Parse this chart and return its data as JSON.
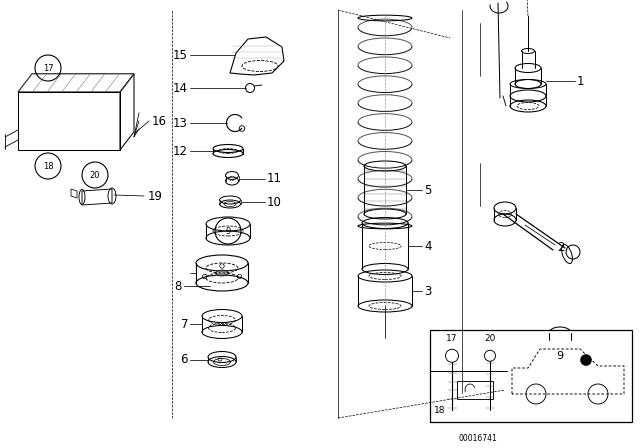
{
  "bg_color": "#ffffff",
  "line_color": "#000000",
  "fig_width": 6.4,
  "fig_height": 4.48,
  "dpi": 100,
  "diagram_num": "00016741"
}
